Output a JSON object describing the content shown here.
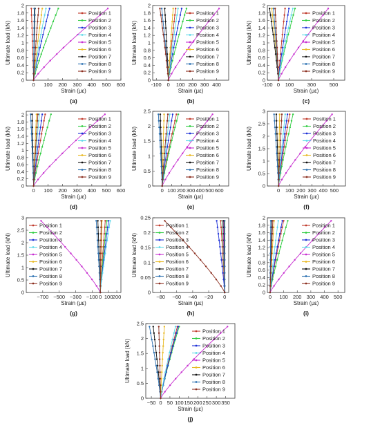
{
  "figure": {
    "legend_entries": [
      "Position 1",
      "Position 2",
      "Position 3",
      "Position 4",
      "Position 5",
      "Position 6",
      "Position 7",
      "Position 8",
      "Position 9"
    ],
    "series_colors": [
      "#c0392b",
      "#2ecc40",
      "#1c2fd6",
      "#5dd8e8",
      "#c72fd0",
      "#e8b923",
      "#111111",
      "#2a6fb0",
      "#8b2e1f"
    ]
  },
  "chart_data": [
    {
      "panel_label": "(a)",
      "type": "line",
      "xlabel": "Strain (με)",
      "ylabel": "Ultimate load (kN)",
      "xlim": [
        -50,
        600
      ],
      "ylim": [
        0,
        2
      ],
      "xticks": [
        0,
        100,
        200,
        300,
        400,
        500,
        600
      ],
      "yticks": [
        0,
        0.2,
        0.4,
        0.6,
        0.8,
        1,
        1.2,
        1.4,
        1.6,
        1.8,
        2
      ],
      "legend_position": "right",
      "x_max": [
        -15,
        170,
        110,
        85,
        510,
        60,
        10,
        5,
        35
      ]
    },
    {
      "panel_label": "(b)",
      "type": "line",
      "xlabel": "Strain (με)",
      "ylabel": "Ultimate load (kN)",
      "xlim": [
        -130,
        500
      ],
      "ylim": [
        0,
        2
      ],
      "xticks": [
        -100,
        0,
        100,
        200,
        300,
        400
      ],
      "yticks": [
        0,
        0.2,
        0.4,
        0.6,
        0.8,
        1,
        1.2,
        1.4,
        1.6,
        1.8,
        2
      ],
      "legend_position": "right",
      "x_max": [
        60,
        150,
        110,
        80,
        420,
        40,
        -30,
        -55,
        -70
      ]
    },
    {
      "panel_label": "(c)",
      "type": "line",
      "xlabel": "Strain (με)",
      "ylabel": "Ultimate load (kN)",
      "xlim": [
        -100,
        600
      ],
      "ylim": [
        0,
        2
      ],
      "xticks": [
        -100,
        0,
        100,
        300,
        500
      ],
      "yticks": [
        0,
        0.2,
        0.4,
        0.6,
        0.8,
        1,
        1.2,
        1.4,
        1.6,
        1.8,
        2
      ],
      "legend_position": "right",
      "x_max": [
        60,
        150,
        95,
        130,
        450,
        -60,
        -80,
        -45,
        -30
      ]
    },
    {
      "panel_label": "(d)",
      "type": "line",
      "xlabel": "Strain (με)",
      "ylabel": "Ultimate load (kN)",
      "xlim": [
        -50,
        600
      ],
      "ylim": [
        0,
        2.1
      ],
      "xticks": [
        0,
        100,
        200,
        300,
        400,
        500,
        600
      ],
      "yticks": [
        0,
        0.2,
        0.4,
        0.6,
        0.8,
        1,
        1.2,
        1.4,
        1.6,
        1.8,
        2
      ],
      "legend_position": "right",
      "x_max": [
        80,
        120,
        60,
        40,
        490,
        20,
        -10,
        -20,
        30
      ]
    },
    {
      "panel_label": "(e)",
      "type": "line",
      "xlabel": "Strain (με)",
      "ylabel": "Ultimate load (kN)",
      "xlim": [
        -100,
        700
      ],
      "ylim": [
        0,
        2.5
      ],
      "xticks": [
        0,
        100,
        200,
        300,
        400,
        500,
        600
      ],
      "yticks": [
        0,
        0.5,
        1,
        1.5,
        2,
        2.5
      ],
      "legend_position": "right",
      "x_max": [
        150,
        170,
        110,
        80,
        530,
        20,
        -20,
        -40,
        60
      ]
    },
    {
      "panel_label": "(f)",
      "type": "line",
      "xlabel": "Strain (με)",
      "ylabel": "Ultimate load (kN)",
      "xlim": [
        -100,
        600
      ],
      "ylim": [
        0,
        3
      ],
      "xticks": [
        0,
        100,
        200,
        300,
        400,
        500
      ],
      "yticks": [
        0,
        0.5,
        1,
        1.5,
        2,
        2.5,
        3
      ],
      "legend_position": "right",
      "x_max": [
        100,
        130,
        80,
        60,
        480,
        10,
        -20,
        -40,
        30
      ]
    },
    {
      "panel_label": "(g)",
      "type": "line",
      "xlabel": "Strain (με)",
      "ylabel": "Ultimate load (kN)",
      "xlim": [
        -900,
        250
      ],
      "ylim": [
        0,
        3
      ],
      "xticks": [
        -700,
        -500,
        -300,
        -100,
        0,
        100,
        200
      ],
      "xticklabels": [
        "−700",
        "−500",
        "−300",
        "−100",
        "0",
        "100",
        "200"
      ],
      "yticks": [
        0,
        0.5,
        1,
        1.5,
        2,
        2.5,
        3
      ],
      "legend_position": "left",
      "x_max": [
        60,
        80,
        100,
        120,
        -720,
        20,
        -30,
        -50,
        10
      ]
    },
    {
      "panel_label": "(h)",
      "type": "line",
      "xlabel": "Strain (με)",
      "ylabel": "Ultimate load (kN)",
      "xlim": [
        -90,
        5
      ],
      "ylim": [
        0,
        0.25
      ],
      "xticks": [
        -80,
        -60,
        -40,
        -20,
        0
      ],
      "xticklabels": [
        "−80",
        "−60",
        "−40",
        "−20",
        "0"
      ],
      "yticks": [
        0,
        0.05,
        0.1,
        0.15,
        0.2,
        0.25
      ],
      "legend_position": "left",
      "x_max": [
        -5,
        -3,
        -10,
        -1,
        -2,
        0,
        -1,
        0,
        -75
      ]
    },
    {
      "panel_label": "(i)",
      "type": "line",
      "xlabel": "Strain (με)",
      "ylabel": "Ultimate load (kN)",
      "xlim": [
        -20,
        550
      ],
      "ylim": [
        0,
        2
      ],
      "xticks": [
        0,
        100,
        200,
        300,
        400,
        500
      ],
      "yticks": [
        0,
        0.2,
        0.4,
        0.6,
        0.8,
        1,
        1.2,
        1.4,
        1.6,
        1.8,
        2
      ],
      "legend_position": "right",
      "x_max": [
        100,
        130,
        90,
        60,
        450,
        30,
        10,
        5,
        20
      ]
    },
    {
      "panel_label": "(j)",
      "type": "line",
      "xlabel": "Strain (με)",
      "ylabel": "Ultimate load (kN)",
      "xlim": [
        -80,
        400
      ],
      "ylim": [
        0,
        2.5
      ],
      "xticks": [
        -50,
        0,
        50,
        100,
        150,
        200,
        250,
        300,
        350
      ],
      "xticklabels": [
        "−50",
        "0",
        "50",
        "100",
        "150",
        "200",
        "250",
        "300",
        "350"
      ],
      "yticks": [
        0,
        0.5,
        1,
        1.5,
        2,
        2.5
      ],
      "legend_position": "right",
      "x_max": [
        90,
        100,
        95,
        80,
        360,
        20,
        -40,
        -60,
        -10
      ]
    }
  ]
}
